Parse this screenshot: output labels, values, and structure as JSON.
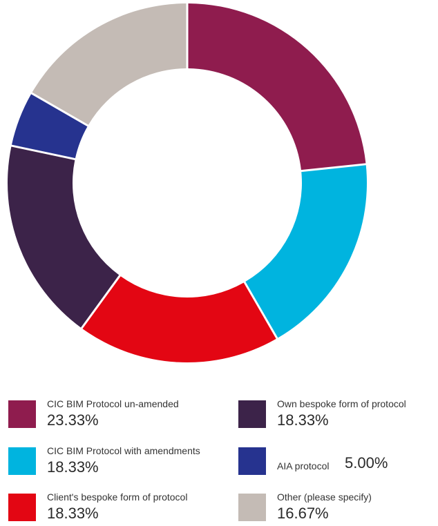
{
  "chart_data": {
    "type": "pie",
    "variant": "donut",
    "slices": [
      {
        "label": "CIC BIM Protocol un-amended",
        "value": 23.33,
        "value_text": "23.33%",
        "color": "#8f1c4e"
      },
      {
        "label": "CIC BIM Protocol with amendments",
        "value": 18.33,
        "value_text": "18.33%",
        "color": "#00b4df"
      },
      {
        "label": "Client's bespoke form of protocol",
        "value": 18.33,
        "value_text": "18.33%",
        "color": "#e30613"
      },
      {
        "label": "Own bespoke form of protocol",
        "value": 18.33,
        "value_text": "18.33%",
        "color": "#3c2349"
      },
      {
        "label": "AIA protocol",
        "value": 5.0,
        "value_text": "5.00%",
        "color": "#26338f"
      },
      {
        "label": "Other (please specify)",
        "value": 16.67,
        "value_text": "16.67%",
        "color": "#c4bbb5"
      }
    ],
    "legend_position": "bottom"
  }
}
